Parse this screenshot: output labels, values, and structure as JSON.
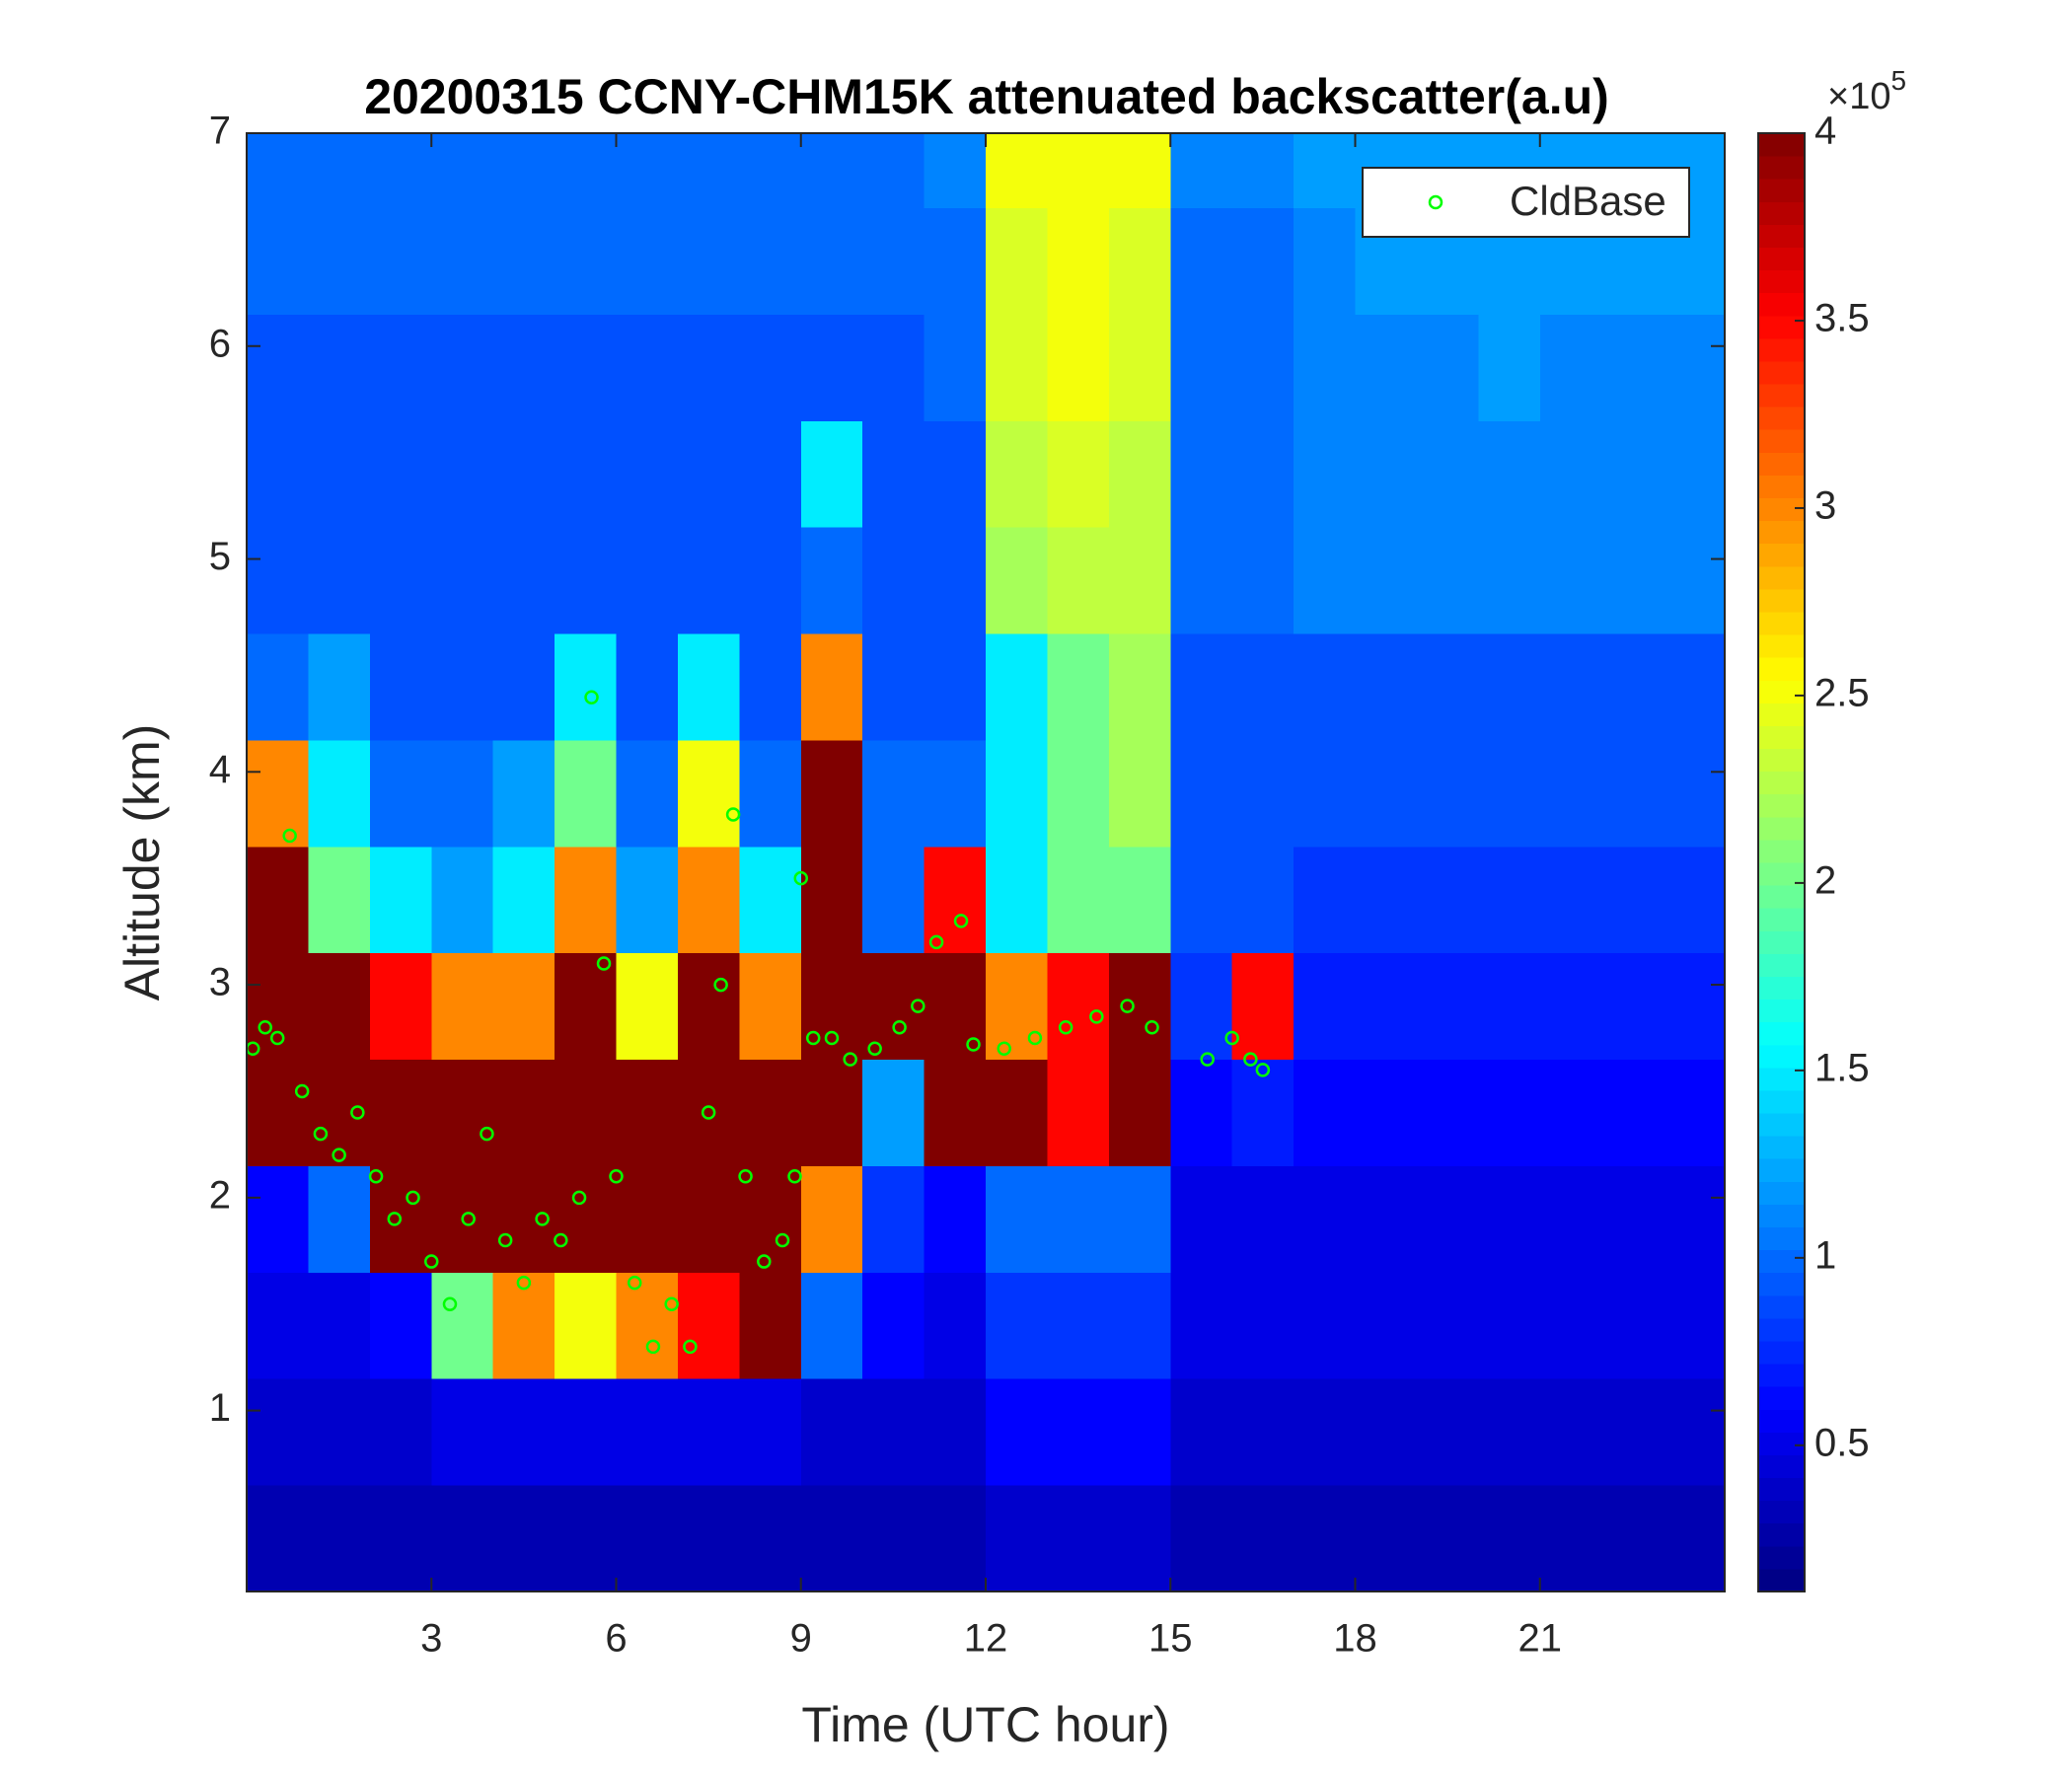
{
  "chart_data": {
    "type": "heatmap",
    "title": "20200315 CCNY-CHM15K attenuated backscatter(a.u)",
    "xlabel": "Time (UTC hour)",
    "ylabel": "Altitude (km)",
    "xlim": [
      0,
      24
    ],
    "xticks": [
      3,
      6,
      9,
      12,
      15,
      18,
      21
    ],
    "ylim": [
      0.15,
      7
    ],
    "yticks": [
      1,
      2,
      3,
      4,
      5,
      6,
      7
    ],
    "colormap": "jet",
    "clim": [
      0.11,
      4
    ],
    "cticks": [
      0.5,
      1,
      1.5,
      2,
      2.5,
      3,
      3.5,
      4
    ],
    "colorbar_multiplier": "×10",
    "colorbar_exponent": "5",
    "x": [
      0.5,
      1.5,
      2.5,
      3.5,
      4.5,
      5.5,
      6.5,
      7.5,
      8.5,
      9.5,
      10.5,
      11.5,
      12.5,
      13.5,
      14.5,
      15.5,
      16.5,
      17.5,
      18.5,
      19.5,
      20.5,
      21.5,
      22.5,
      23.5
    ],
    "y": [
      0.4,
      0.9,
      1.4,
      1.9,
      2.4,
      2.9,
      3.4,
      3.9,
      4.4,
      4.9,
      5.4,
      5.9,
      6.4,
      6.9
    ],
    "z": [
      [
        0.3,
        0.3,
        0.3,
        0.3,
        0.3,
        0.3,
        0.3,
        0.3,
        0.3,
        0.3,
        0.3,
        0.3,
        0.4,
        0.4,
        0.4,
        0.3,
        0.3,
        0.3,
        0.3,
        0.3,
        0.3,
        0.3,
        0.3,
        0.3
      ],
      [
        0.4,
        0.4,
        0.4,
        0.5,
        0.5,
        0.5,
        0.5,
        0.5,
        0.5,
        0.4,
        0.4,
        0.4,
        0.6,
        0.6,
        0.6,
        0.4,
        0.4,
        0.4,
        0.4,
        0.4,
        0.4,
        0.4,
        0.4,
        0.4
      ],
      [
        0.5,
        0.5,
        0.6,
        2,
        3,
        2.5,
        3,
        3.5,
        4,
        1,
        0.6,
        0.5,
        0.8,
        0.8,
        0.8,
        0.5,
        0.5,
        0.5,
        0.5,
        0.5,
        0.5,
        0.5,
        0.5,
        0.5
      ],
      [
        0.6,
        1,
        4,
        4,
        4,
        4,
        4,
        4,
        4,
        3,
        0.8,
        0.6,
        1,
        1,
        1,
        0.5,
        0.5,
        0.5,
        0.5,
        0.5,
        0.5,
        0.5,
        0.5,
        0.5
      ],
      [
        4,
        4,
        4,
        4,
        4,
        4,
        4,
        4,
        4,
        4,
        1.2,
        4,
        4,
        3.5,
        4,
        0.6,
        0.7,
        0.6,
        0.6,
        0.6,
        0.6,
        0.6,
        0.6,
        0.6
      ],
      [
        4,
        4,
        3.5,
        3,
        3,
        4,
        2.5,
        4,
        3,
        4,
        4,
        4,
        3,
        3.5,
        4,
        0.8,
        3.5,
        0.7,
        0.7,
        0.7,
        0.7,
        0.7,
        0.7,
        0.7
      ],
      [
        4,
        2,
        1.5,
        1.2,
        1.5,
        3,
        1.2,
        3,
        1.5,
        4,
        1,
        3.5,
        1.5,
        2,
        2,
        0.9,
        0.9,
        0.8,
        0.8,
        0.8,
        0.8,
        0.8,
        0.8,
        0.8
      ],
      [
        3,
        1.5,
        1,
        1,
        1.2,
        2,
        1,
        2.5,
        1,
        4,
        1,
        1,
        1.5,
        2,
        2.2,
        0.9,
        0.9,
        0.9,
        0.9,
        0.9,
        0.9,
        0.9,
        0.9,
        0.9
      ],
      [
        1,
        1.2,
        0.9,
        0.9,
        0.9,
        1.5,
        0.9,
        1.5,
        0.9,
        3,
        0.9,
        0.9,
        1.5,
        2,
        2.2,
        0.9,
        0.9,
        0.9,
        0.9,
        0.9,
        0.9,
        0.9,
        0.9,
        0.9
      ],
      [
        0.9,
        0.9,
        0.9,
        0.9,
        0.9,
        0.9,
        0.9,
        0.9,
        0.9,
        1,
        0.9,
        0.9,
        2.2,
        2.3,
        2.3,
        1,
        1,
        1.1,
        1.1,
        1.1,
        1.1,
        1.1,
        1.1,
        1.1
      ],
      [
        0.9,
        0.9,
        0.9,
        0.9,
        0.9,
        0.9,
        0.9,
        0.9,
        0.9,
        1.5,
        0.9,
        0.9,
        2.3,
        2.4,
        2.3,
        1,
        1,
        1.1,
        1.1,
        1.1,
        1.1,
        1.1,
        1.1,
        1.1
      ],
      [
        0.9,
        0.9,
        0.9,
        0.9,
        0.9,
        0.9,
        0.9,
        0.9,
        0.9,
        0.9,
        0.9,
        1,
        2.4,
        2.5,
        2.4,
        1,
        1,
        1.1,
        1.1,
        1.1,
        1.2,
        1.1,
        1.1,
        1.1
      ],
      [
        1,
        1,
        1,
        1,
        1,
        1,
        1,
        1,
        1,
        1,
        1,
        1,
        2.4,
        2.5,
        2.4,
        1,
        1,
        1.1,
        1.2,
        1.2,
        1.2,
        1.2,
        1.2,
        1.2
      ],
      [
        1,
        1,
        1,
        1,
        1,
        1,
        1,
        1,
        1,
        1,
        1,
        1.1,
        2.5,
        2.5,
        2.5,
        1.1,
        1.1,
        1.2,
        1.2,
        1.2,
        1.2,
        1.2,
        1.2,
        1.2
      ]
    ],
    "legend": "upper right",
    "series": [
      {
        "name": "CldBase",
        "type": "scatter",
        "color": "#00ff00",
        "x": [
          0.1,
          0.3,
          0.5,
          0.7,
          0.9,
          1.2,
          1.5,
          1.8,
          2.1,
          2.4,
          2.7,
          3.0,
          3.3,
          3.6,
          3.9,
          4.2,
          4.5,
          4.8,
          5.1,
          5.4,
          5.6,
          5.8,
          6.0,
          6.3,
          6.6,
          6.9,
          7.2,
          7.5,
          7.7,
          7.9,
          8.1,
          8.4,
          8.7,
          8.9,
          9.0,
          9.2,
          9.5,
          9.8,
          10.2,
          10.6,
          10.9,
          11.2,
          11.6,
          11.8,
          12.3,
          12.8,
          13.3,
          13.8,
          14.3,
          14.7,
          15.6,
          16.0,
          16.3,
          16.5
        ],
        "values": [
          2.7,
          2.8,
          2.75,
          3.7,
          2.5,
          2.3,
          2.2,
          2.4,
          2.1,
          1.9,
          2.0,
          1.7,
          1.5,
          1.9,
          2.3,
          1.8,
          1.6,
          1.9,
          1.8,
          2.0,
          4.35,
          3.1,
          2.1,
          1.6,
          1.3,
          1.5,
          1.3,
          2.4,
          3.0,
          3.8,
          2.1,
          1.7,
          1.8,
          2.1,
          3.5,
          2.75,
          2.75,
          2.65,
          2.7,
          2.8,
          2.9,
          3.2,
          3.3,
          2.72,
          2.7,
          2.75,
          2.8,
          2.85,
          2.9,
          2.8,
          2.65,
          2.75,
          2.65,
          2.6
        ]
      }
    ]
  }
}
